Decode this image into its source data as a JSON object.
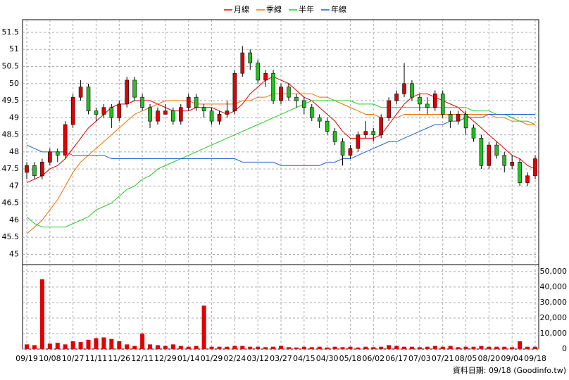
{
  "chart_data": {
    "type": "candlestick",
    "categories": [
      "09/19",
      null,
      null,
      "10/08",
      null,
      null,
      "10/27",
      null,
      null,
      "11/11",
      null,
      null,
      "11/26",
      null,
      null,
      "12/11",
      null,
      null,
      "12/29",
      null,
      null,
      "01/14",
      null,
      null,
      "01/29",
      null,
      null,
      "02/24",
      null,
      null,
      "03/12",
      null,
      null,
      "03/27",
      null,
      null,
      "04/15",
      null,
      null,
      "04/30",
      null,
      null,
      "05/18",
      null,
      null,
      "06/02",
      null,
      null,
      "06/17",
      null,
      null,
      "07/03",
      null,
      null,
      "07/21",
      null,
      null,
      "08/05",
      null,
      null,
      "08/20",
      null,
      null,
      "09/04",
      null,
      null,
      "09/18"
    ],
    "open": [
      47.4,
      47.6,
      47.3,
      47.7,
      48.0,
      47.9,
      48.8,
      49.6,
      49.9,
      49.2,
      49.1,
      49.3,
      49.0,
      49.4,
      50.1,
      49.6,
      49.3,
      48.9,
      49.1,
      49.2,
      48.9,
      49.3,
      49.6,
      49.3,
      49.2,
      48.9,
      49.1,
      49.2,
      50.3,
      50.9,
      50.6,
      50.1,
      50.3,
      49.5,
      49.9,
      49.6,
      49.5,
      49.3,
      49.0,
      48.9,
      48.6,
      48.3,
      47.9,
      48.1,
      48.5,
      48.6,
      48.5,
      49.0,
      49.5,
      49.7,
      50.0,
      49.6,
      49.4,
      49.3,
      49.7,
      49.1,
      48.9,
      49.1,
      48.7,
      48.4,
      47.6,
      48.2,
      47.9,
      47.6,
      47.7,
      47.1,
      47.3
    ],
    "high": [
      47.7,
      47.7,
      47.8,
      48.1,
      48.1,
      48.9,
      49.7,
      50.1,
      50.0,
      49.3,
      49.4,
      49.4,
      49.5,
      50.2,
      50.2,
      49.7,
      49.4,
      49.3,
      49.4,
      49.3,
      49.4,
      49.7,
      49.7,
      49.4,
      49.3,
      49.2,
      49.5,
      50.4,
      51.1,
      51.0,
      50.7,
      50.4,
      50.4,
      50.0,
      50.0,
      49.7,
      49.6,
      49.4,
      49.1,
      49.0,
      48.7,
      48.4,
      48.2,
      48.6,
      48.9,
      48.7,
      49.1,
      49.6,
      49.8,
      50.6,
      50.1,
      49.7,
      49.6,
      49.8,
      49.8,
      49.2,
      49.2,
      49.2,
      48.8,
      48.5,
      48.3,
      48.3,
      48.0,
      47.9,
      47.8,
      47.4,
      47.9
    ],
    "low": [
      47.2,
      47.2,
      47.2,
      47.6,
      47.7,
      47.8,
      48.7,
      49.5,
      49.1,
      48.9,
      49.0,
      48.7,
      48.9,
      49.3,
      49.5,
      49.2,
      48.7,
      48.8,
      49.1,
      48.8,
      48.8,
      49.2,
      49.2,
      49.0,
      48.8,
      48.8,
      49.0,
      49.1,
      50.2,
      50.4,
      50.0,
      49.9,
      49.4,
      49.4,
      49.5,
      49.3,
      49.1,
      48.9,
      48.7,
      48.5,
      48.2,
      47.6,
      47.8,
      48.0,
      48.4,
      48.3,
      48.4,
      48.9,
      49.4,
      49.6,
      49.5,
      49.2,
      49.1,
      49.2,
      49.0,
      48.7,
      48.8,
      48.5,
      48.3,
      47.5,
      47.5,
      47.8,
      47.4,
      47.5,
      47.0,
      47.0,
      47.2
    ],
    "close": [
      47.6,
      47.3,
      47.7,
      48.0,
      47.9,
      48.8,
      49.6,
      49.9,
      49.2,
      49.1,
      49.3,
      49.0,
      49.4,
      50.1,
      49.6,
      49.3,
      48.9,
      49.2,
      49.2,
      48.9,
      49.3,
      49.6,
      49.3,
      49.2,
      48.9,
      49.1,
      49.2,
      50.3,
      50.9,
      50.6,
      50.1,
      50.3,
      49.5,
      49.9,
      49.6,
      49.5,
      49.3,
      49.0,
      48.9,
      48.6,
      48.3,
      47.9,
      48.1,
      48.5,
      48.6,
      48.5,
      49.0,
      49.5,
      49.7,
      50.0,
      49.6,
      49.4,
      49.3,
      49.7,
      49.1,
      48.9,
      49.1,
      48.7,
      48.4,
      47.6,
      48.2,
      47.9,
      47.6,
      47.7,
      47.1,
      47.3,
      47.8
    ],
    "up_color": "#e00000",
    "down_color": "#22c022",
    "series": [
      {
        "name": "月線",
        "color": "#e00000",
        "values": [
          47.1,
          47.2,
          47.3,
          47.5,
          47.6,
          47.8,
          48.1,
          48.4,
          48.7,
          48.9,
          49.1,
          49.3,
          49.4,
          49.4,
          49.5,
          49.5,
          49.5,
          49.4,
          49.3,
          49.2,
          49.2,
          49.2,
          49.3,
          49.3,
          49.3,
          49.2,
          49.1,
          49.2,
          49.4,
          49.7,
          49.9,
          50.1,
          50.2,
          50.1,
          50.0,
          49.8,
          49.6,
          49.5,
          49.3,
          49.1,
          48.9,
          48.6,
          48.4,
          48.4,
          48.4,
          48.4,
          48.5,
          48.8,
          49.1,
          49.4,
          49.6,
          49.7,
          49.7,
          49.6,
          49.5,
          49.4,
          49.3,
          49.1,
          48.9,
          48.7,
          48.5,
          48.3,
          48.1,
          47.9,
          47.8,
          47.6,
          47.5
        ]
      },
      {
        "name": "季線",
        "color": "#f07000",
        "values": [
          45.6,
          45.8,
          46.0,
          46.3,
          46.6,
          47.0,
          47.4,
          47.7,
          47.9,
          48.1,
          48.3,
          48.5,
          48.7,
          48.9,
          49.1,
          49.2,
          49.3,
          49.4,
          49.5,
          49.5,
          49.5,
          49.5,
          49.4,
          49.4,
          49.4,
          49.4,
          49.4,
          49.4,
          49.5,
          49.5,
          49.6,
          49.6,
          49.7,
          49.7,
          49.7,
          49.7,
          49.7,
          49.7,
          49.6,
          49.6,
          49.5,
          49.4,
          49.3,
          49.2,
          49.1,
          49.1,
          49.0,
          49.0,
          49.0,
          49.1,
          49.1,
          49.1,
          49.1,
          49.1,
          49.1,
          49.1,
          49.1,
          49.1,
          49.1,
          49.1,
          49.1,
          49.0,
          49.0,
          48.9,
          48.9,
          48.8,
          48.8
        ]
      },
      {
        "name": "半年",
        "color": "#22cc22",
        "values": [
          46.1,
          45.9,
          45.8,
          45.8,
          45.8,
          45.8,
          45.9,
          46.0,
          46.1,
          46.3,
          46.4,
          46.5,
          46.7,
          46.9,
          47.0,
          47.2,
          47.3,
          47.5,
          47.6,
          47.7,
          47.8,
          47.9,
          48.0,
          48.1,
          48.2,
          48.3,
          48.4,
          48.5,
          48.6,
          48.7,
          48.8,
          48.9,
          49.0,
          49.1,
          49.2,
          49.3,
          49.4,
          49.5,
          49.5,
          49.5,
          49.5,
          49.5,
          49.5,
          49.4,
          49.4,
          49.4,
          49.3,
          49.3,
          49.3,
          49.3,
          49.3,
          49.3,
          49.3,
          49.3,
          49.3,
          49.3,
          49.3,
          49.3,
          49.2,
          49.2,
          49.2,
          49.1,
          49.1,
          49.0,
          48.9,
          48.9,
          48.8
        ]
      },
      {
        "name": "年線",
        "color": "#2060d0",
        "values": [
          48.2,
          48.1,
          48.0,
          48.0,
          48.0,
          48.0,
          47.9,
          47.9,
          47.9,
          47.9,
          47.9,
          47.8,
          47.8,
          47.8,
          47.8,
          47.8,
          47.8,
          47.8,
          47.8,
          47.8,
          47.8,
          47.8,
          47.8,
          47.8,
          47.8,
          47.8,
          47.8,
          47.8,
          47.7,
          47.7,
          47.7,
          47.7,
          47.7,
          47.6,
          47.6,
          47.6,
          47.6,
          47.6,
          47.6,
          47.7,
          47.7,
          47.8,
          47.8,
          47.9,
          48.0,
          48.1,
          48.2,
          48.3,
          48.3,
          48.4,
          48.5,
          48.6,
          48.7,
          48.8,
          48.8,
          48.9,
          48.9,
          49.0,
          49.0,
          49.0,
          49.1,
          49.1,
          49.1,
          49.1,
          49.1,
          49.1,
          49.1
        ]
      }
    ],
    "ylim": [
      44.7,
      51.87
    ],
    "yticks": [
      45,
      45.5,
      46,
      46.5,
      47,
      47.5,
      48,
      48.5,
      49,
      49.5,
      50,
      50.5,
      51,
      51.5
    ],
    "volume": {
      "color": "#e00000",
      "values": [
        3000,
        2500,
        45000,
        3500,
        4000,
        3000,
        5000,
        4500,
        6000,
        7000,
        7500,
        6500,
        5000,
        3000,
        2000,
        10000,
        3000,
        2500,
        2000,
        3000,
        2000,
        1500,
        2000,
        28000,
        1500,
        1500,
        1500,
        2000,
        2000,
        1500,
        1500,
        1200,
        1500,
        2000,
        1200,
        1000,
        1500,
        1200,
        1500,
        1000,
        1500,
        1200,
        1500,
        1000,
        1500,
        1200,
        1500,
        2500,
        2000,
        1500,
        1500,
        1200,
        1500,
        2000,
        1500,
        2000,
        1200,
        1500,
        1500,
        2000,
        1500,
        1500,
        1500,
        1200,
        5000,
        1500,
        1500
      ],
      "ylim": [
        0,
        54500
      ],
      "yticks": [
        0,
        {
          "value": 10000,
          "label": "10,000"
        },
        {
          "value": 20000,
          "label": "20,000"
        },
        {
          "value": 30000,
          "label": "30,000"
        },
        {
          "value": 40000,
          "label": "40,000"
        },
        {
          "value": 50000,
          "label": "50,000"
        }
      ]
    },
    "grid": true,
    "footer": "資料日期: 09/18 (Goodinfo.tw)"
  }
}
